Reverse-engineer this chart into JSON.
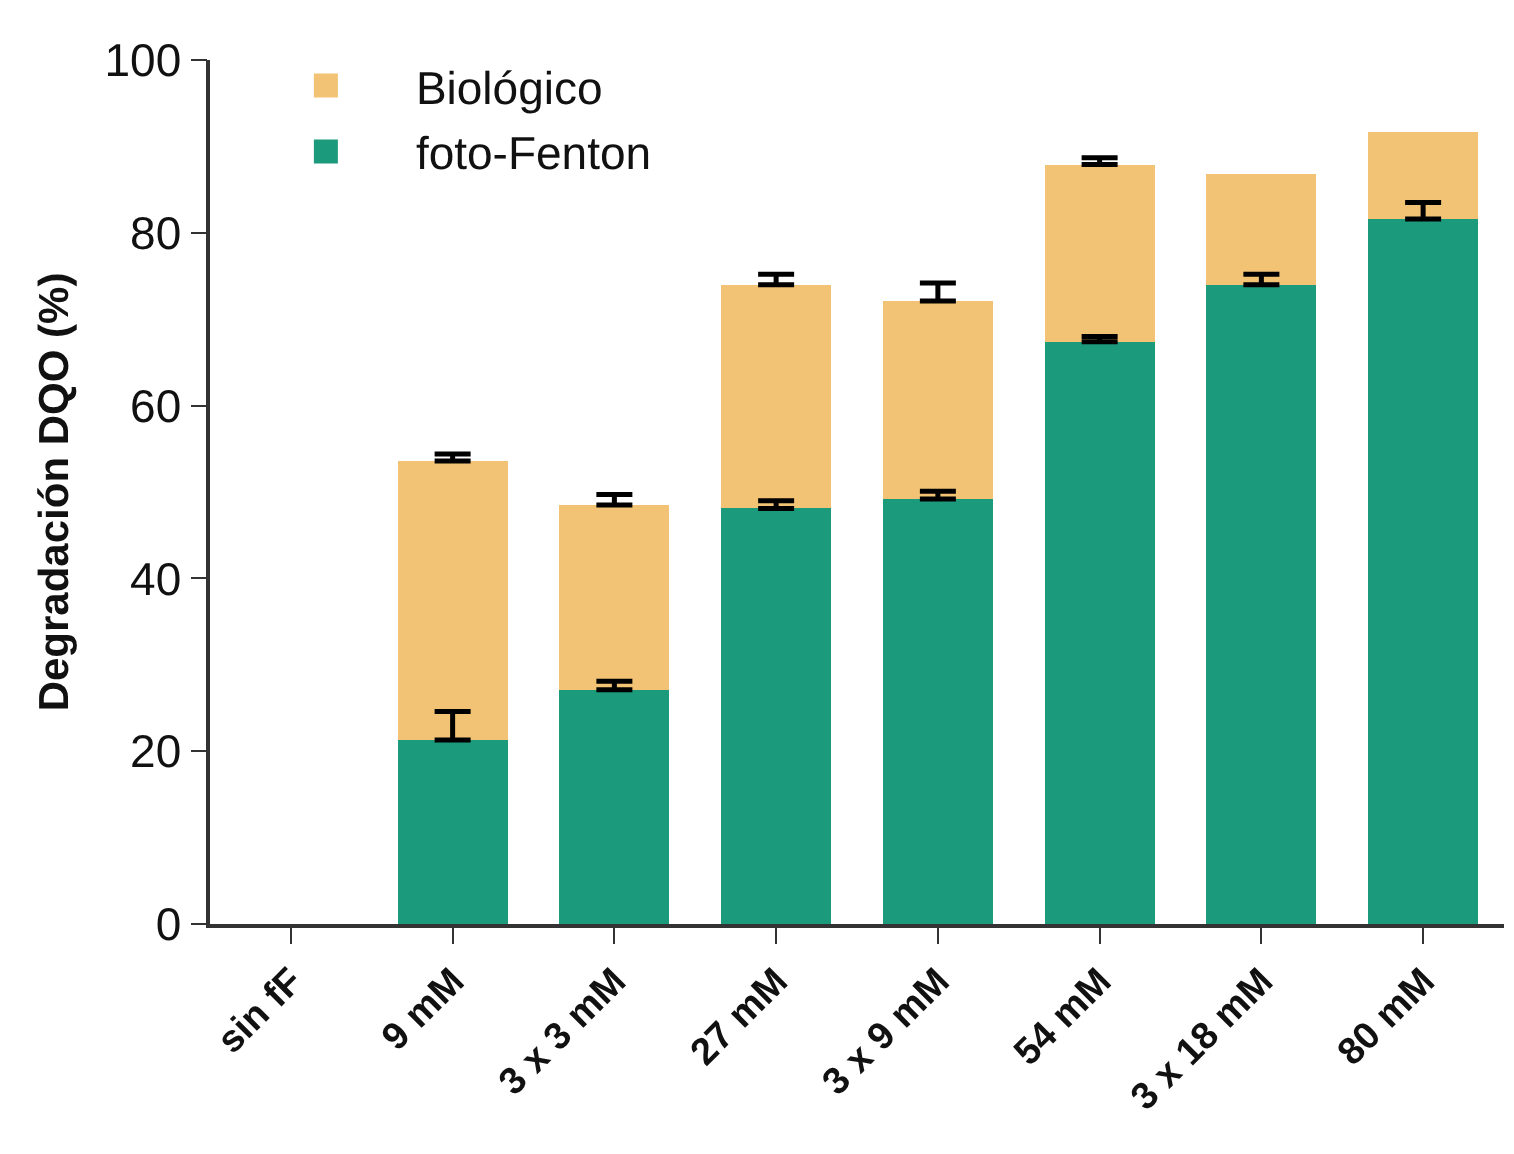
{
  "chart_data": {
    "type": "bar",
    "stacked": true,
    "ylabel": "Degradación DQO (%)",
    "categories": [
      "sin fF",
      "9 mM",
      "3 x 3 mM",
      "27 mM",
      "3 x 9 mM",
      "54 mM",
      "3 x 18 mM",
      "80 mM"
    ],
    "series": [
      {
        "name": "foto-Fenton",
        "color": "#1c9a7c",
        "values": [
          null,
          21.3,
          27.1,
          48.1,
          49.2,
          67.4,
          74.0,
          81.6
        ],
        "errors": [
          null,
          [
            21.3,
            24.6
          ],
          [
            27.1,
            28.1
          ],
          [
            48.1,
            49.0
          ],
          [
            49.2,
            50.1
          ],
          [
            67.4,
            68.0
          ],
          [
            74.0,
            75.2
          ],
          [
            81.6,
            83.5
          ]
        ]
      },
      {
        "name": "Biológico",
        "color": "#f2c374",
        "values": [
          null,
          32.3,
          21.4,
          25.9,
          22.9,
          20.5,
          12.8,
          10.1
        ],
        "errors": [
          null,
          [
            53.6,
            54.4
          ],
          [
            48.5,
            49.7
          ],
          [
            74.0,
            75.2
          ],
          [
            72.1,
            74.2
          ],
          [
            87.9,
            88.7
          ],
          null,
          null
        ]
      }
    ],
    "ylim": [
      0,
      100
    ],
    "yticks": [
      0,
      20,
      40,
      60,
      80,
      100
    ],
    "grid": false,
    "legend": "top left"
  }
}
